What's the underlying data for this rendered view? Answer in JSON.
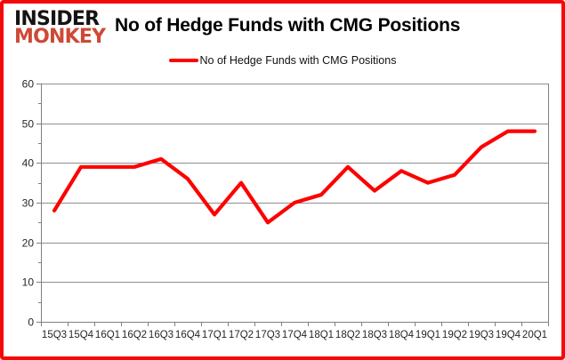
{
  "logo": {
    "line1": "INSIDER",
    "line2": "MONKEY"
  },
  "title": "No of Hedge Funds with CMG Positions",
  "legend": {
    "label": "No of Hedge Funds with CMG Positions"
  },
  "colors": {
    "line": "#fd0202",
    "frame_border": "#f40808",
    "logo_black": "#141414",
    "logo_red": "#cd4a35",
    "grid": "#8e8e8e",
    "axis": "#808080",
    "tick_text": "#262626"
  },
  "chart_data": {
    "type": "line",
    "title": "No of Hedge Funds with CMG Positions",
    "categories": [
      "15Q3",
      "15Q4",
      "16Q1",
      "16Q2",
      "16Q3",
      "16Q4",
      "17Q1",
      "17Q2",
      "17Q3",
      "17Q4",
      "18Q1",
      "18Q2",
      "18Q3",
      "18Q4",
      "19Q1",
      "19Q2",
      "19Q3",
      "19Q4",
      "20Q1"
    ],
    "series": [
      {
        "name": "No of Hedge Funds with CMG Positions",
        "values": [
          28,
          39,
          39,
          39,
          41,
          36,
          27,
          35,
          25,
          30,
          32,
          39,
          33,
          38,
          35,
          37,
          44,
          48,
          48
        ]
      }
    ],
    "xlabel": "",
    "ylabel": "",
    "ylim": [
      0,
      60
    ],
    "ytick_step": 10,
    "ytick_minor_step": 5,
    "grid": true,
    "legend_position": "top-center"
  }
}
